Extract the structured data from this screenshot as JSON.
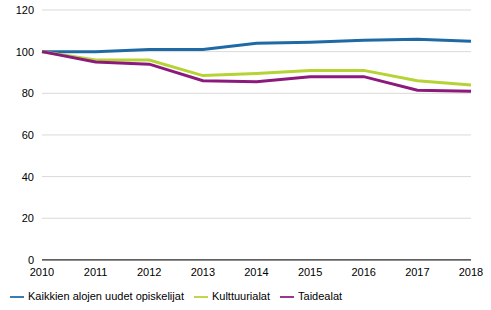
{
  "chart_data": {
    "type": "line",
    "categories": [
      "2010",
      "2011",
      "2012",
      "2013",
      "2014",
      "2015",
      "2016",
      "2017",
      "2018"
    ],
    "series": [
      {
        "name": "Kaikkien alojen uudet opiskelijat",
        "color": "#1f6aa5",
        "values": [
          100,
          100,
          101,
          101,
          104,
          104.5,
          105.5,
          106,
          105
        ]
      },
      {
        "name": "Kulttuurialat",
        "color": "#b5d334",
        "values": [
          100,
          96,
          96,
          88.5,
          89.5,
          91,
          91,
          86,
          84
        ]
      },
      {
        "name": "Taidealat",
        "color": "#8c1a7c",
        "values": [
          100,
          95,
          94,
          86,
          85.5,
          88,
          88,
          81.5,
          81
        ]
      }
    ],
    "ylim": [
      0,
      120
    ],
    "yticks": [
      0,
      20,
      40,
      60,
      80,
      100,
      120
    ],
    "grid": true,
    "legend": "bottom"
  }
}
